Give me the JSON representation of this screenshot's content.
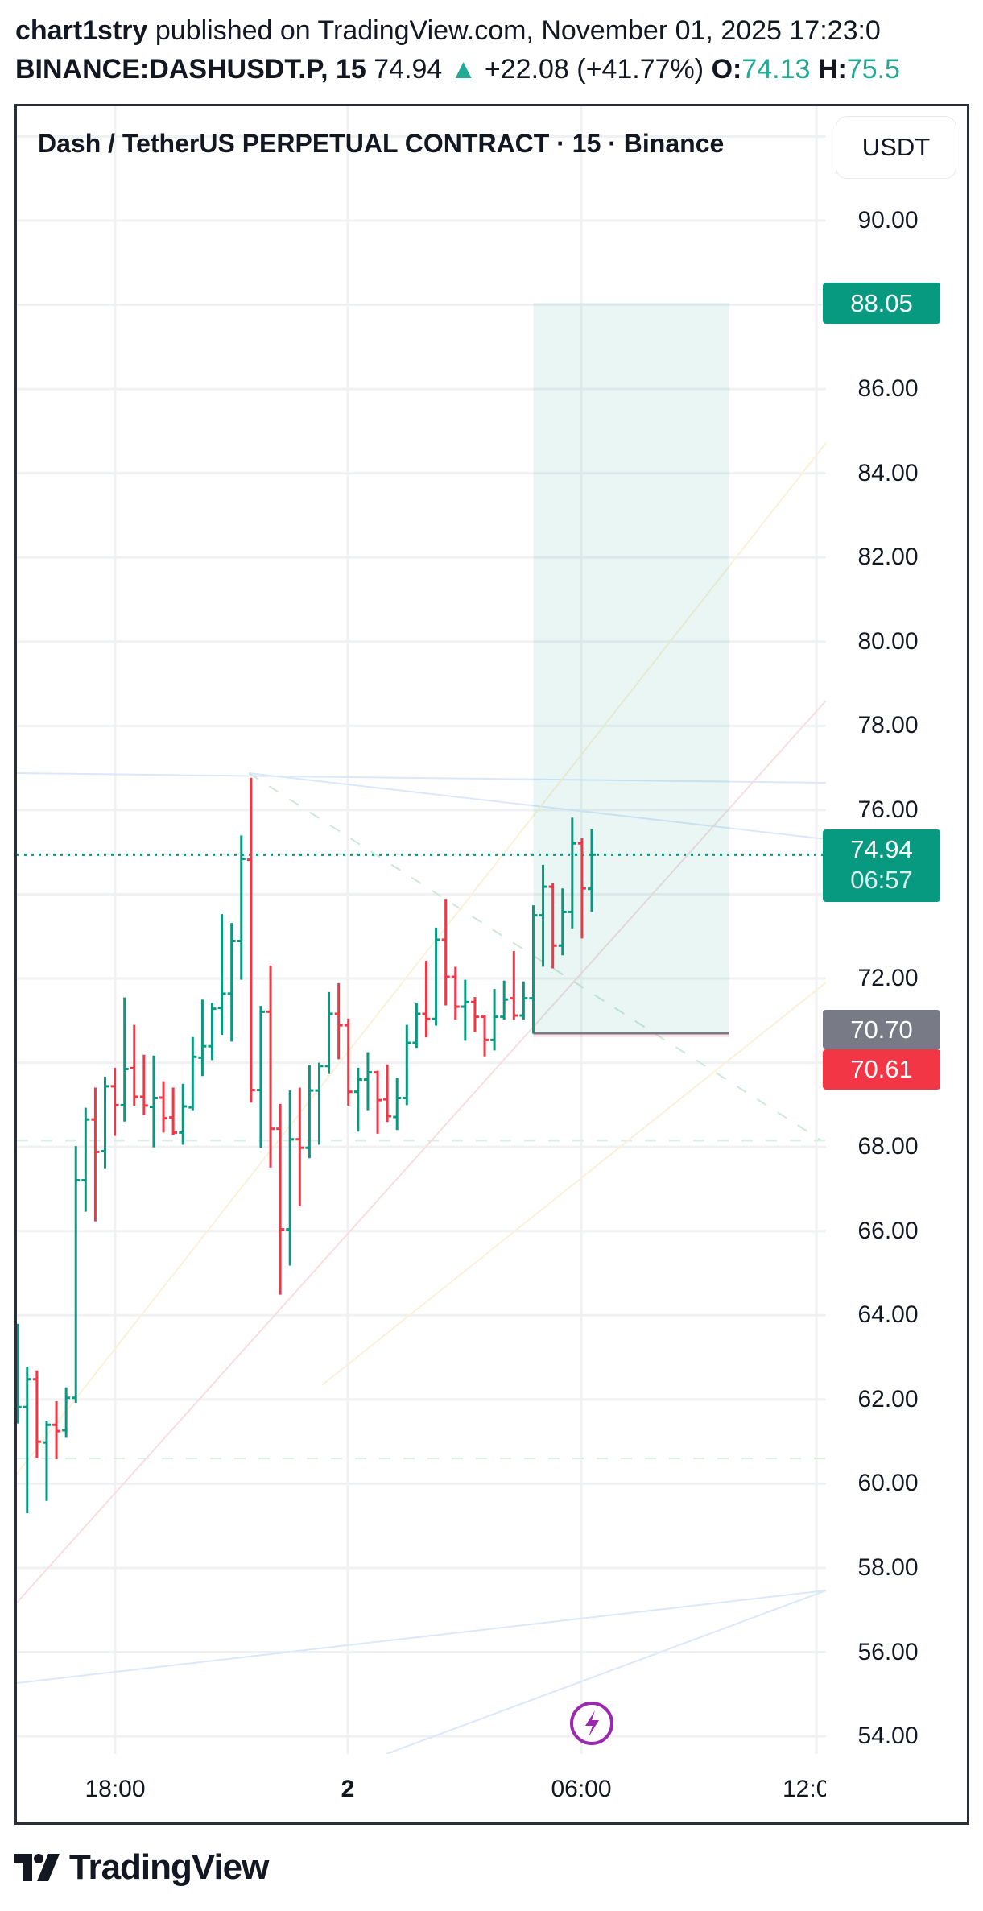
{
  "header": {
    "author": "chart1stry",
    "published_text": " published on TradingView.com, November 01, 2025 17:23:0",
    "symbol": "BINANCE:DASHUSDT.P, 15",
    "last_price": "74.94",
    "change_arrow": "▲",
    "change": "+22.08 (+41.77%)",
    "open_label": "O:",
    "open_value": "74.13",
    "high_label": "H:",
    "high_value": "75.5"
  },
  "legend": {
    "title": "Dash / TetherUS PERPETUAL CONTRACT · 15 · Binance"
  },
  "currency_button": "USDT",
  "price_axis": {
    "labels": [
      "90.00",
      "86.00",
      "84.00",
      "82.00",
      "80.00",
      "78.00",
      "76.00",
      "72.00",
      "68.00",
      "66.00",
      "64.00",
      "62.00",
      "60.00",
      "58.00",
      "56.00",
      "54.00"
    ],
    "tags": {
      "target": "88.05",
      "last": "74.94",
      "countdown": "06:57",
      "entry": "70.70",
      "stop": "70.61"
    }
  },
  "time_axis": {
    "labels": [
      "18:00",
      "2",
      "06:00",
      "12:0"
    ]
  },
  "footer": {
    "brand": "TradingView"
  },
  "colors": {
    "up": "#089981",
    "down": "#f23645",
    "entry": "#787b86",
    "accent_text": "#22ab94",
    "alert": "#9c27b0"
  },
  "icons": {
    "alert": "lightning-bolt-icon",
    "logo": "tradingview-logo-icon"
  },
  "chart_data": {
    "type": "ohlc",
    "interval": "15",
    "ylim": [
      54,
      92
    ],
    "grid": true,
    "long_position": {
      "entry": 70.7,
      "target": 88.05,
      "stop": 70.61,
      "start": "04:45",
      "end": "10:00"
    },
    "bars": [
      {
        "t": "15:30",
        "o": 61.6,
        "h": 63.78,
        "l": 61.45,
        "c": 61.82
      },
      {
        "t": "15:45",
        "o": 61.82,
        "h": 62.76,
        "l": 59.32,
        "c": 62.48
      },
      {
        "t": "16:00",
        "o": 62.48,
        "h": 62.67,
        "l": 60.62,
        "c": 61.0
      },
      {
        "t": "16:15",
        "o": 60.98,
        "h": 61.48,
        "l": 59.61,
        "c": 61.4
      },
      {
        "t": "16:30",
        "o": 61.4,
        "h": 61.94,
        "l": 60.6,
        "c": 61.25
      },
      {
        "t": "16:45",
        "o": 61.27,
        "h": 62.27,
        "l": 61.11,
        "c": 62.04
      },
      {
        "t": "17:00",
        "o": 62.04,
        "h": 68.0,
        "l": 61.94,
        "c": 67.21
      },
      {
        "t": "17:15",
        "o": 67.21,
        "h": 68.91,
        "l": 66.48,
        "c": 68.65
      },
      {
        "t": "17:30",
        "o": 68.65,
        "h": 69.39,
        "l": 66.25,
        "c": 67.88
      },
      {
        "t": "17:45",
        "o": 67.9,
        "h": 69.65,
        "l": 67.51,
        "c": 69.44
      },
      {
        "t": "18:00",
        "o": 69.44,
        "h": 69.86,
        "l": 68.28,
        "c": 68.99
      },
      {
        "t": "18:15",
        "o": 68.99,
        "h": 71.53,
        "l": 68.62,
        "c": 69.85
      },
      {
        "t": "18:30",
        "o": 69.87,
        "h": 70.88,
        "l": 68.99,
        "c": 69.19
      },
      {
        "t": "18:45",
        "o": 69.19,
        "h": 70.17,
        "l": 68.77,
        "c": 68.98
      },
      {
        "t": "19:00",
        "o": 68.95,
        "h": 70.15,
        "l": 68.01,
        "c": 69.16
      },
      {
        "t": "19:15",
        "o": 69.17,
        "h": 69.54,
        "l": 68.36,
        "c": 68.68
      },
      {
        "t": "19:30",
        "o": 68.7,
        "h": 69.39,
        "l": 68.3,
        "c": 68.34
      },
      {
        "t": "19:45",
        "o": 68.34,
        "h": 69.48,
        "l": 68.07,
        "c": 68.96
      },
      {
        "t": "20:00",
        "o": 68.94,
        "h": 70.59,
        "l": 68.89,
        "c": 70.14
      },
      {
        "t": "20:15",
        "o": 70.12,
        "h": 71.48,
        "l": 69.7,
        "c": 70.39
      },
      {
        "t": "20:30",
        "o": 70.39,
        "h": 71.4,
        "l": 70.08,
        "c": 71.28
      },
      {
        "t": "20:45",
        "o": 71.3,
        "h": 73.51,
        "l": 70.68,
        "c": 71.64
      },
      {
        "t": "21:00",
        "o": 71.64,
        "h": 73.3,
        "l": 70.52,
        "c": 72.89
      },
      {
        "t": "21:15",
        "o": 72.89,
        "h": 75.38,
        "l": 71.99,
        "c": 74.84
      },
      {
        "t": "21:30",
        "o": 74.82,
        "h": 76.75,
        "l": 69.07,
        "c": 69.35
      },
      {
        "t": "21:45",
        "o": 69.35,
        "h": 71.33,
        "l": 68.0,
        "c": 71.21
      },
      {
        "t": "22:00",
        "o": 71.21,
        "h": 72.29,
        "l": 67.53,
        "c": 68.43
      },
      {
        "t": "22:15",
        "o": 68.43,
        "h": 69.0,
        "l": 64.51,
        "c": 66.04
      },
      {
        "t": "22:30",
        "o": 66.04,
        "h": 69.32,
        "l": 65.2,
        "c": 68.18
      },
      {
        "t": "22:45",
        "o": 68.18,
        "h": 69.39,
        "l": 66.61,
        "c": 67.98
      },
      {
        "t": "23:00",
        "o": 67.98,
        "h": 69.92,
        "l": 67.75,
        "c": 69.34
      },
      {
        "t": "23:15",
        "o": 69.34,
        "h": 69.98,
        "l": 68.07,
        "c": 69.92
      },
      {
        "t": "23:30",
        "o": 69.92,
        "h": 71.66,
        "l": 69.75,
        "c": 71.16
      },
      {
        "t": "23:45",
        "o": 71.16,
        "h": 71.87,
        "l": 70.1,
        "c": 70.89
      },
      {
        "t": "00:00",
        "o": 70.89,
        "h": 71.03,
        "l": 69.0,
        "c": 69.31
      },
      {
        "t": "00:15",
        "o": 69.31,
        "h": 69.86,
        "l": 68.38,
        "c": 69.6
      },
      {
        "t": "00:30",
        "o": 69.6,
        "h": 70.23,
        "l": 68.89,
        "c": 69.77
      },
      {
        "t": "00:45",
        "o": 69.77,
        "h": 69.79,
        "l": 68.33,
        "c": 69.11
      },
      {
        "t": "01:00",
        "o": 69.13,
        "h": 69.94,
        "l": 68.61,
        "c": 68.73
      },
      {
        "t": "01:15",
        "o": 68.71,
        "h": 69.62,
        "l": 68.42,
        "c": 69.16
      },
      {
        "t": "01:30",
        "o": 69.16,
        "h": 70.88,
        "l": 69.01,
        "c": 70.47
      },
      {
        "t": "01:45",
        "o": 70.47,
        "h": 71.41,
        "l": 70.37,
        "c": 71.16
      },
      {
        "t": "02:00",
        "o": 71.16,
        "h": 72.4,
        "l": 70.62,
        "c": 71.04
      },
      {
        "t": "02:15",
        "o": 71.04,
        "h": 73.19,
        "l": 70.9,
        "c": 72.92
      },
      {
        "t": "02:30",
        "o": 72.92,
        "h": 73.87,
        "l": 71.38,
        "c": 72.04
      },
      {
        "t": "02:45",
        "o": 72.04,
        "h": 72.26,
        "l": 71.04,
        "c": 71.33
      },
      {
        "t": "03:00",
        "o": 71.33,
        "h": 71.95,
        "l": 70.54,
        "c": 71.44
      },
      {
        "t": "03:15",
        "o": 71.44,
        "h": 71.54,
        "l": 70.75,
        "c": 71.09
      },
      {
        "t": "03:30",
        "o": 71.09,
        "h": 71.12,
        "l": 70.17,
        "c": 70.54
      },
      {
        "t": "03:45",
        "o": 70.54,
        "h": 71.73,
        "l": 70.31,
        "c": 71.09
      },
      {
        "t": "04:00",
        "o": 71.09,
        "h": 71.93,
        "l": 71.04,
        "c": 71.5
      },
      {
        "t": "04:15",
        "o": 71.53,
        "h": 72.63,
        "l": 71.04,
        "c": 71.12
      },
      {
        "t": "04:30",
        "o": 71.12,
        "h": 71.91,
        "l": 71.04,
        "c": 71.53
      },
      {
        "t": "04:45",
        "o": 71.53,
        "h": 73.72,
        "l": 70.71,
        "c": 73.5
      },
      {
        "t": "05:00",
        "o": 73.5,
        "h": 74.68,
        "l": 72.3,
        "c": 74.18
      },
      {
        "t": "05:15",
        "o": 74.18,
        "h": 74.24,
        "l": 72.26,
        "c": 72.78
      },
      {
        "t": "05:30",
        "o": 72.78,
        "h": 74.12,
        "l": 72.57,
        "c": 73.58
      },
      {
        "t": "05:45",
        "o": 73.58,
        "h": 75.8,
        "l": 73.21,
        "c": 75.21
      },
      {
        "t": "06:00",
        "o": 75.21,
        "h": 75.31,
        "l": 72.97,
        "c": 74.14
      },
      {
        "t": "06:15",
        "o": 74.13,
        "h": 75.52,
        "l": 73.6,
        "c": 74.94
      }
    ]
  }
}
